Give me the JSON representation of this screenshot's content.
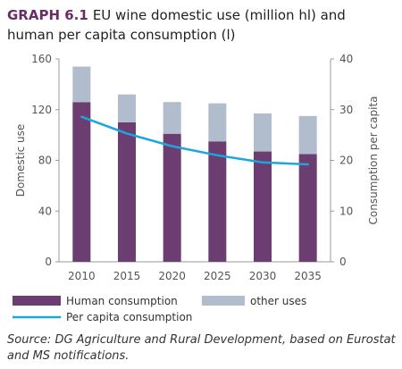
{
  "figure": {
    "number": "GRAPH 6.1",
    "title": "EU wine domestic use (million hl) and human per capita consumption (l)",
    "source": "Source: DG Agriculture and Rural Development, based on Eurostat and MS notifications."
  },
  "chart_data": {
    "type": "bar",
    "stacked": true,
    "categories": [
      "2010",
      "2015",
      "2020",
      "2025",
      "2030",
      "2035"
    ],
    "series": [
      {
        "name": "Human consumption",
        "type": "bar",
        "axis": "left",
        "color": "#6b3d71",
        "values": [
          126,
          110,
          101,
          95,
          87,
          85
        ]
      },
      {
        "name": "other uses",
        "type": "bar",
        "axis": "left",
        "color": "#b1bccd",
        "values": [
          28,
          22,
          25,
          30,
          30,
          30
        ]
      },
      {
        "name": "Per capita consumption",
        "type": "line",
        "axis": "right",
        "color": "#1ba6df",
        "values": [
          28.6,
          25.3,
          22.8,
          21.0,
          19.6,
          19.2
        ]
      }
    ],
    "ylabel": "Domestic use",
    "ylim": [
      0,
      160
    ],
    "yticks": [
      "0",
      "40",
      "80",
      "120",
      "160"
    ],
    "y2label": "Consumption per capita",
    "y2lim": [
      0,
      40
    ],
    "y2ticks": [
      "0",
      "10",
      "20",
      "30",
      "40"
    ],
    "grid": false,
    "legend_position": "bottom"
  }
}
